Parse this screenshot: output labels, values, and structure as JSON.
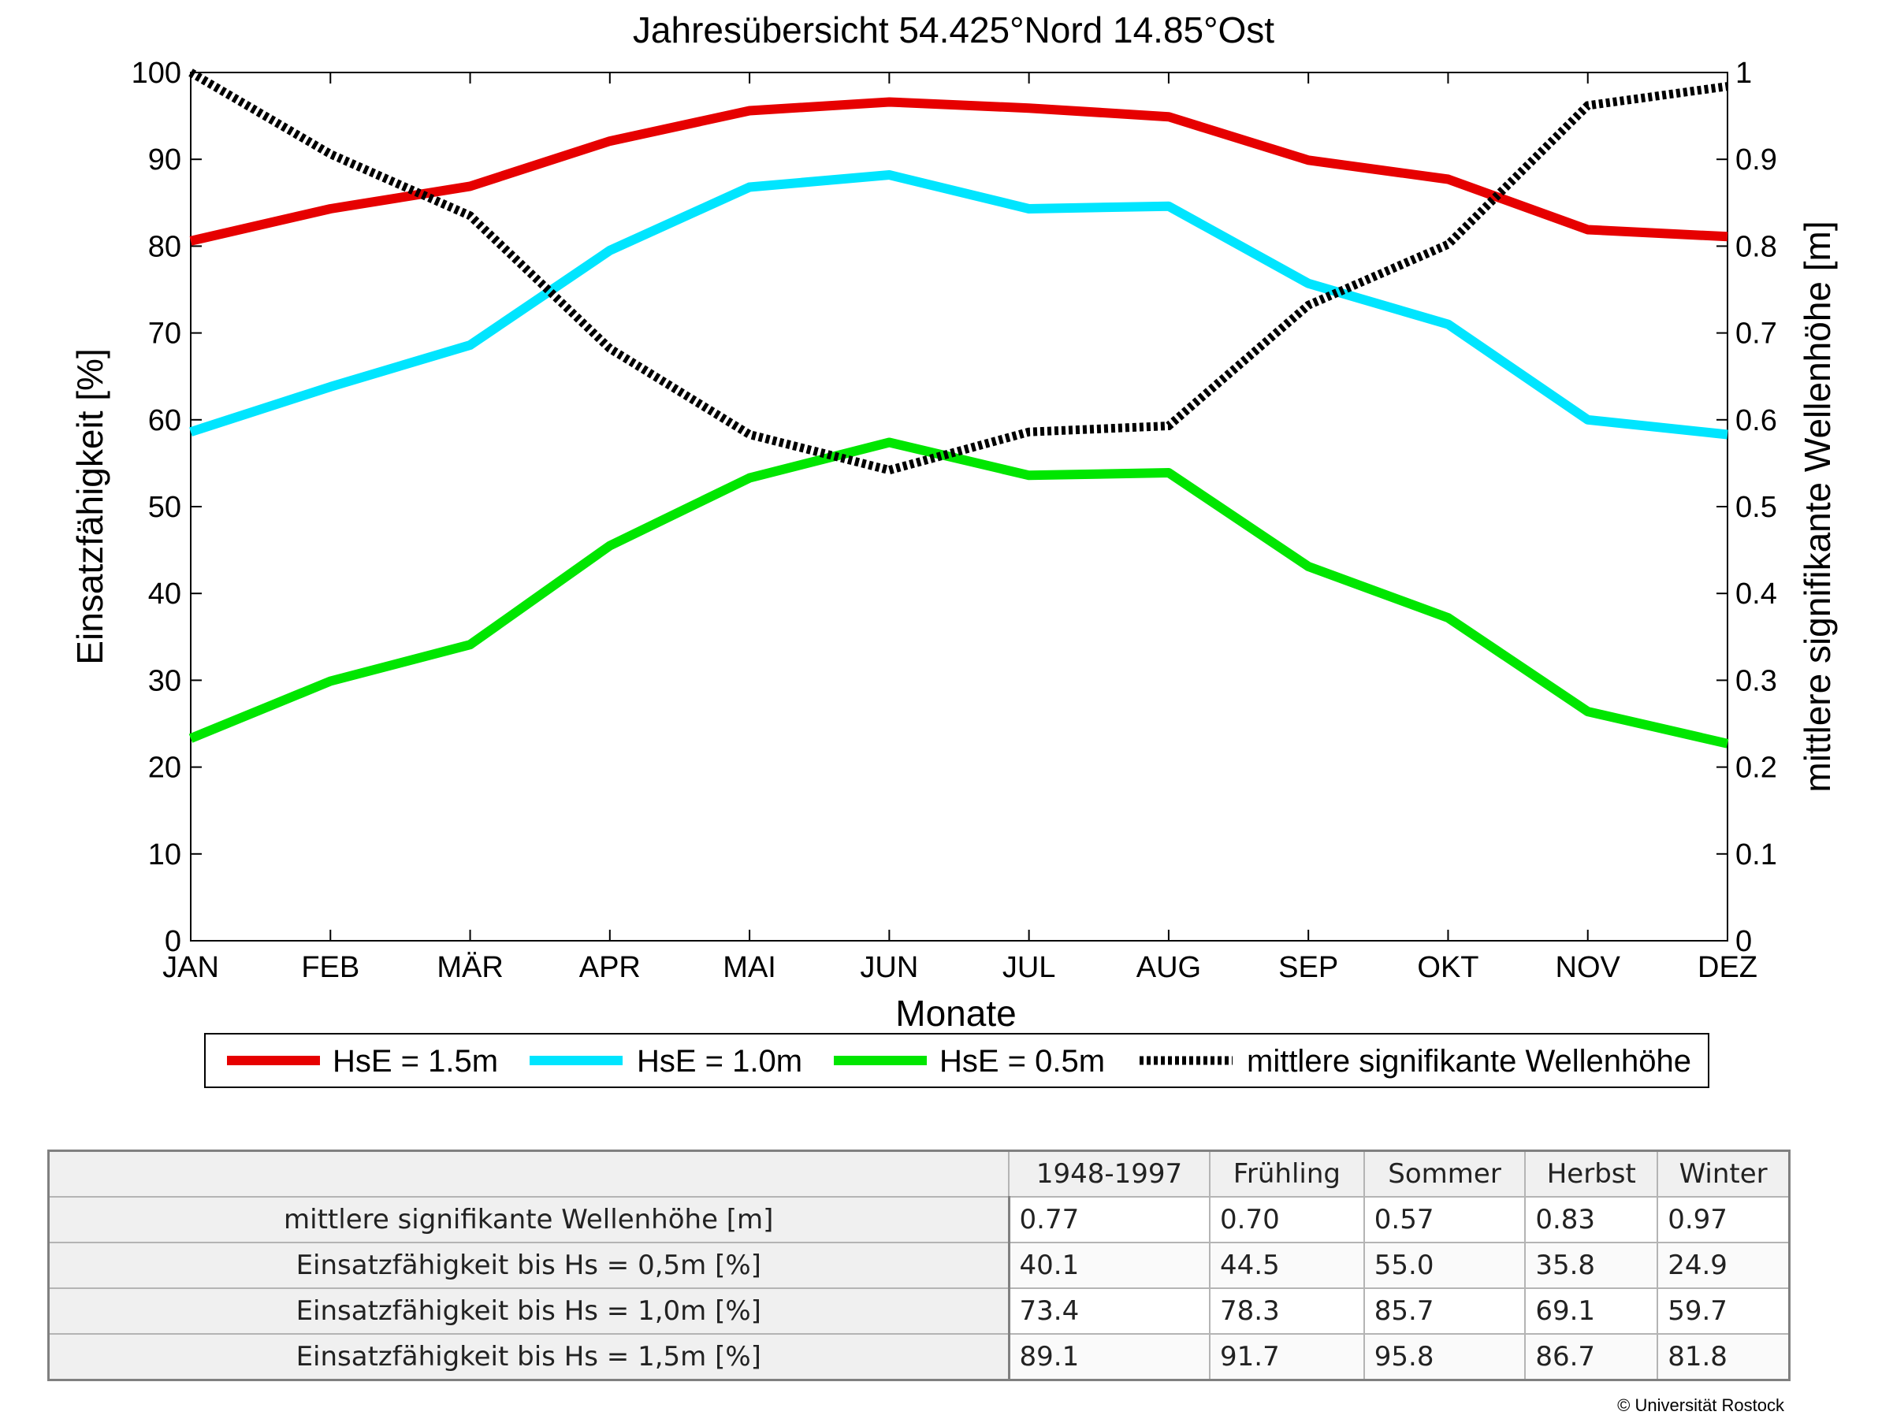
{
  "chart_data": {
    "type": "line",
    "title": "Jahresübersicht  54.425°Nord  14.85°Ost",
    "xlabel": "Monate",
    "ylabel": "Einsatzfähigkeit [%]",
    "y2label": "mittlere signifikante Wellenhöhe [m]",
    "categories": [
      "JAN",
      "FEB",
      "MÄR",
      "APR",
      "MAI",
      "JUN",
      "JUL",
      "AUG",
      "SEP",
      "OKT",
      "NOV",
      "DEZ"
    ],
    "ylim": [
      0,
      100
    ],
    "y2lim": [
      0,
      1
    ],
    "yticks": [
      "0",
      "10",
      "20",
      "30",
      "40",
      "50",
      "60",
      "70",
      "80",
      "90",
      "100"
    ],
    "y2ticks": [
      "0",
      "0.1",
      "0.2",
      "0.3",
      "0.4",
      "0.5",
      "0.6",
      "0.7",
      "0.8",
      "0.9",
      "1"
    ],
    "grid": false,
    "legend_position": "bottom",
    "series": [
      {
        "name": "HsE = 1.5m",
        "axis": "left",
        "color": "#e60000",
        "style": "solid",
        "values": [
          80.6,
          84.3,
          86.9,
          92.1,
          95.6,
          96.6,
          95.9,
          94.9,
          89.9,
          87.7,
          81.9,
          81.1
        ]
      },
      {
        "name": "HsE = 1.0m",
        "axis": "left",
        "color": "#00e5ff",
        "style": "solid",
        "values": [
          58.6,
          63.8,
          68.6,
          79.5,
          86.8,
          88.2,
          84.3,
          84.6,
          75.7,
          71.0,
          60.0,
          58.3
        ]
      },
      {
        "name": "HsE = 0.5m",
        "axis": "left",
        "color": "#00e600",
        "style": "solid",
        "values": [
          23.3,
          29.9,
          34.1,
          45.5,
          53.3,
          57.4,
          53.6,
          53.9,
          43.1,
          37.2,
          26.4,
          22.7
        ]
      },
      {
        "name": "mittlere signifikante Wellenhöhe",
        "axis": "right",
        "color": "#000000",
        "style": "dotted",
        "values": [
          1.0,
          0.906,
          0.835,
          0.682,
          0.583,
          0.542,
          0.586,
          0.593,
          0.732,
          0.802,
          0.962,
          0.984
        ]
      }
    ]
  },
  "stats_table": {
    "columns": [
      "1948-1997",
      "Frühling",
      "Sommer",
      "Herbst",
      "Winter"
    ],
    "rows": [
      {
        "label": "mittlere signifikante Wellenhöhe [m]",
        "values": [
          "0.77",
          "0.70",
          "0.57",
          "0.83",
          "0.97"
        ]
      },
      {
        "label": "Einsatzfähigkeit bis Hs = 0,5m [%]",
        "values": [
          "40.1",
          "44.5",
          "55.0",
          "35.8",
          "24.9"
        ]
      },
      {
        "label": "Einsatzfähigkeit bis Hs = 1,0m [%]",
        "values": [
          "73.4",
          "78.3",
          "85.7",
          "69.1",
          "59.7"
        ]
      },
      {
        "label": "Einsatzfähigkeit bis Hs = 1,5m [%]",
        "values": [
          "89.1",
          "91.7",
          "95.8",
          "86.7",
          "81.8"
        ]
      }
    ]
  },
  "copyright": "© Universität Rostock"
}
